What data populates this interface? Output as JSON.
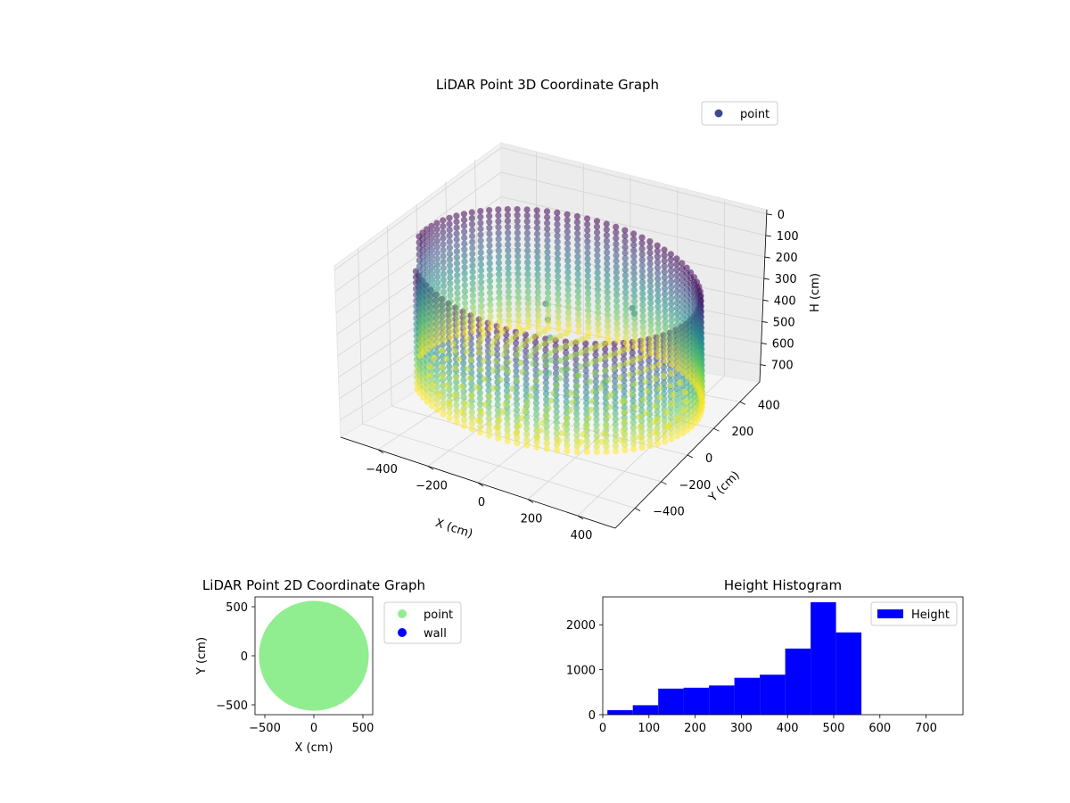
{
  "chart_data": [
    {
      "type": "scatter",
      "projection": "3d",
      "title": "LiDAR Point 3D Coordinate Graph",
      "xlabel": "X (cm)",
      "ylabel": "Y (cm)",
      "zlabel": "H (cm)",
      "xticks": [
        -400,
        -200,
        0,
        200,
        400
      ],
      "yticks": [
        -400,
        -200,
        0,
        200,
        400
      ],
      "zticks": [
        0,
        100,
        200,
        300,
        400,
        500,
        600,
        700
      ],
      "xlim": [
        -550,
        550
      ],
      "ylim": [
        -550,
        550
      ],
      "zlim": [
        780,
        -20
      ],
      "z_inverted": true,
      "grid": true,
      "colormap": "viridis",
      "legend": {
        "entries": [
          "point"
        ],
        "placement": "upper-right",
        "marker_color": "#3e4a89"
      },
      "series": [
        {
          "name": "point",
          "description_shape": "cylindrical wall of points around the scanner, radius about 500 cm, heights 0 to 700 cm, plus an inner floor of points near 450 to 550 cm height and a few scattered obstacle points",
          "wall_radius": 500,
          "wall_height_range": [
            0,
            700
          ],
          "floor_height_range": [
            430,
            560
          ]
        }
      ]
    },
    {
      "type": "scatter",
      "title": "LiDAR Point 2D Coordinate Graph",
      "xlabel": "X (cm)",
      "ylabel": "Y (cm)",
      "xticks": [
        -500,
        0,
        500
      ],
      "yticks": [
        -500,
        0,
        500
      ],
      "xlim": [
        -600,
        600
      ],
      "ylim": [
        -600,
        600
      ],
      "legend": {
        "placement": "outside-right"
      },
      "series": [
        {
          "name": "point",
          "color": "#90ee90",
          "shape": "filled disk, radius about 560 cm centred at origin"
        },
        {
          "name": "wall",
          "color": "#0000ff"
        }
      ]
    },
    {
      "type": "bar",
      "title": "Height Histogram",
      "legend": {
        "entries": [
          "Height"
        ],
        "placement": "upper-right"
      },
      "color": "#0000ff",
      "xticks": [
        0,
        100,
        200,
        300,
        400,
        500,
        600,
        700
      ],
      "yticks": [
        0,
        1000,
        2000
      ],
      "xlim": [
        0,
        780
      ],
      "ylim": [
        0,
        2620
      ],
      "bin_edges": [
        10,
        65,
        120,
        175,
        230,
        285,
        340,
        395,
        450,
        505,
        560,
        615,
        670,
        725,
        780
      ],
      "counts": [
        100,
        210,
        580,
        600,
        650,
        820,
        890,
        1470,
        2500,
        1830,
        0,
        0,
        0,
        0
      ],
      "series": [
        {
          "name": "Height"
        }
      ]
    }
  ]
}
